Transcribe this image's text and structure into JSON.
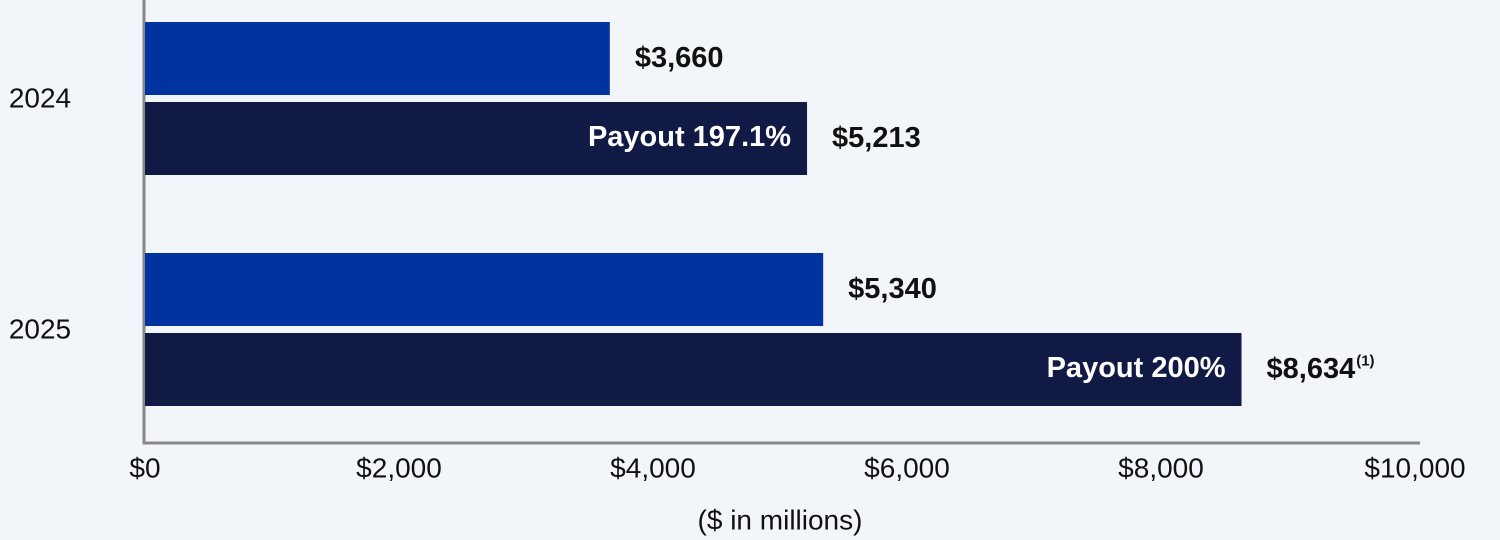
{
  "chart_data": {
    "type": "bar",
    "orientation": "horizontal",
    "categories": [
      "2024",
      "2025"
    ],
    "series": [
      {
        "color": "#0033a0",
        "values": [
          3660,
          5340
        ],
        "value_labels": [
          "$3,660",
          "$5,340"
        ]
      },
      {
        "color": "#111a45",
        "values": [
          5213,
          8634
        ],
        "value_labels": [
          "$5,213",
          "$8,634"
        ],
        "footnote_marks": [
          null,
          "(1)"
        ],
        "annotations": [
          "Payout 197.1%",
          "Payout 200%"
        ]
      }
    ],
    "xlim": [
      0,
      10000
    ],
    "xticks": [
      {
        "value": 0,
        "label": "$0"
      },
      {
        "value": 2000,
        "label": "$2,000"
      },
      {
        "value": 4000,
        "label": "$4,000"
      },
      {
        "value": 6000,
        "label": "$6,000"
      },
      {
        "value": 8000,
        "label": "$8,000"
      },
      {
        "value": 10000,
        "label": "$10,000"
      }
    ],
    "x_label": "($ in millions)",
    "grid": false
  }
}
